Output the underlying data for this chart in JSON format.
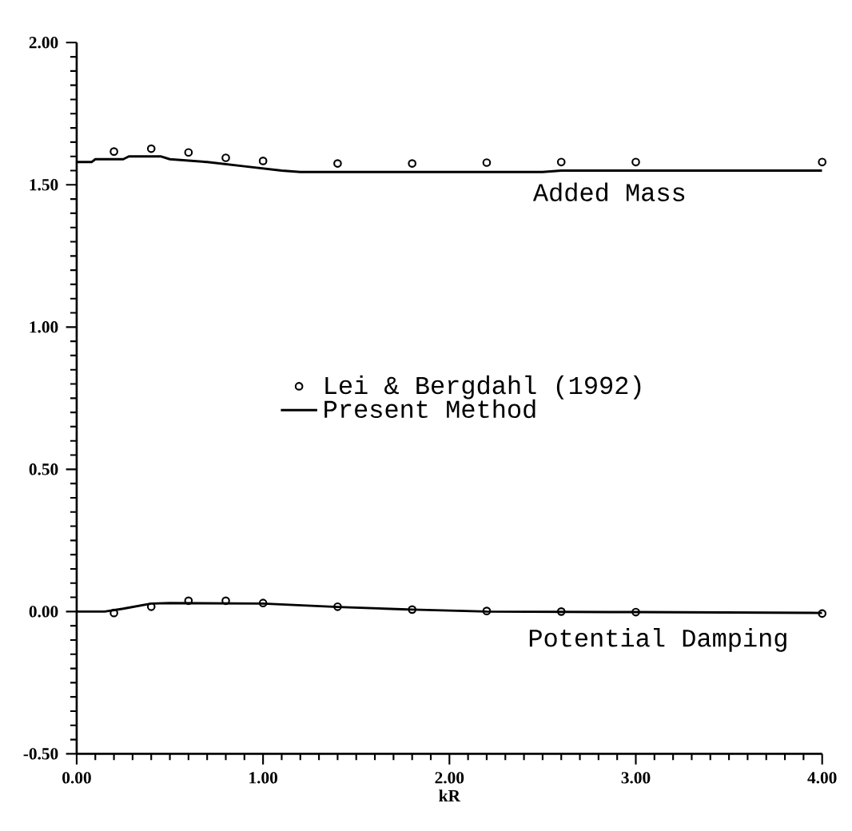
{
  "chart_data": {
    "type": "line",
    "xlabel": "kR",
    "xlim": [
      0,
      4
    ],
    "ylim": [
      -0.5,
      2.0
    ],
    "xticks": [
      {
        "value": 0,
        "label": "0.00"
      },
      {
        "value": 1,
        "label": "1.00"
      },
      {
        "value": 2,
        "label": "2.00"
      },
      {
        "value": 3,
        "label": "3.00"
      },
      {
        "value": 4,
        "label": "4.00"
      }
    ],
    "yticks": [
      {
        "value": -0.5,
        "label": "-0.50"
      },
      {
        "value": 0,
        "label": "0.00"
      },
      {
        "value": 0.5,
        "label": "0.50"
      },
      {
        "value": 1,
        "label": "1.00"
      },
      {
        "value": 1.5,
        "label": "1.50"
      },
      {
        "value": 2,
        "label": "2.00"
      }
    ],
    "legend": "center",
    "series": [
      {
        "name": "Lei & Bergdahl (1992)",
        "type": "scatter",
        "marker": "circle",
        "color": "#000000",
        "x": [
          0.2,
          0.4,
          0.6,
          0.8,
          1.0,
          1.4,
          1.8,
          2.2,
          2.6,
          3.0,
          4.0
        ],
        "values": [
          1.617,
          1.627,
          1.614,
          1.595,
          1.584,
          1.575,
          1.575,
          1.578,
          1.58,
          1.58,
          1.58
        ]
      },
      {
        "name": "Present Method",
        "color": "#000000",
        "x": [
          0,
          0.08,
          0.1,
          0.25,
          0.28,
          0.45,
          0.5,
          0.7,
          0.9,
          1.1,
          1.2,
          2.5,
          2.6,
          4.0
        ],
        "values": [
          1.58,
          1.58,
          1.59,
          1.59,
          1.6,
          1.6,
          1.59,
          1.58,
          1.565,
          1.55,
          1.545,
          1.545,
          1.55,
          1.55
        ]
      },
      {
        "type": "scatter",
        "marker": "circle",
        "color": "#000000",
        "x": [
          0.2,
          0.4,
          0.6,
          0.8,
          1.0,
          1.4,
          1.8,
          2.2,
          2.6,
          3.0,
          4.0
        ],
        "values": [
          -0.005,
          0.017,
          0.038,
          0.038,
          0.03,
          0.017,
          0.007,
          0.002,
          0.0,
          -0.002,
          -0.007
        ]
      },
      {
        "color": "#000000",
        "x": [
          0,
          0.15,
          0.25,
          0.4,
          0.5,
          1.0,
          1.4,
          1.8,
          2.2,
          3.0,
          4.0
        ],
        "values": [
          0,
          0,
          0.01,
          0.028,
          0.03,
          0.028,
          0.016,
          0.007,
          0.0,
          -0.002,
          -0.005
        ]
      }
    ],
    "annotations": [
      "Added Mass",
      "Potential Damping"
    ]
  }
}
